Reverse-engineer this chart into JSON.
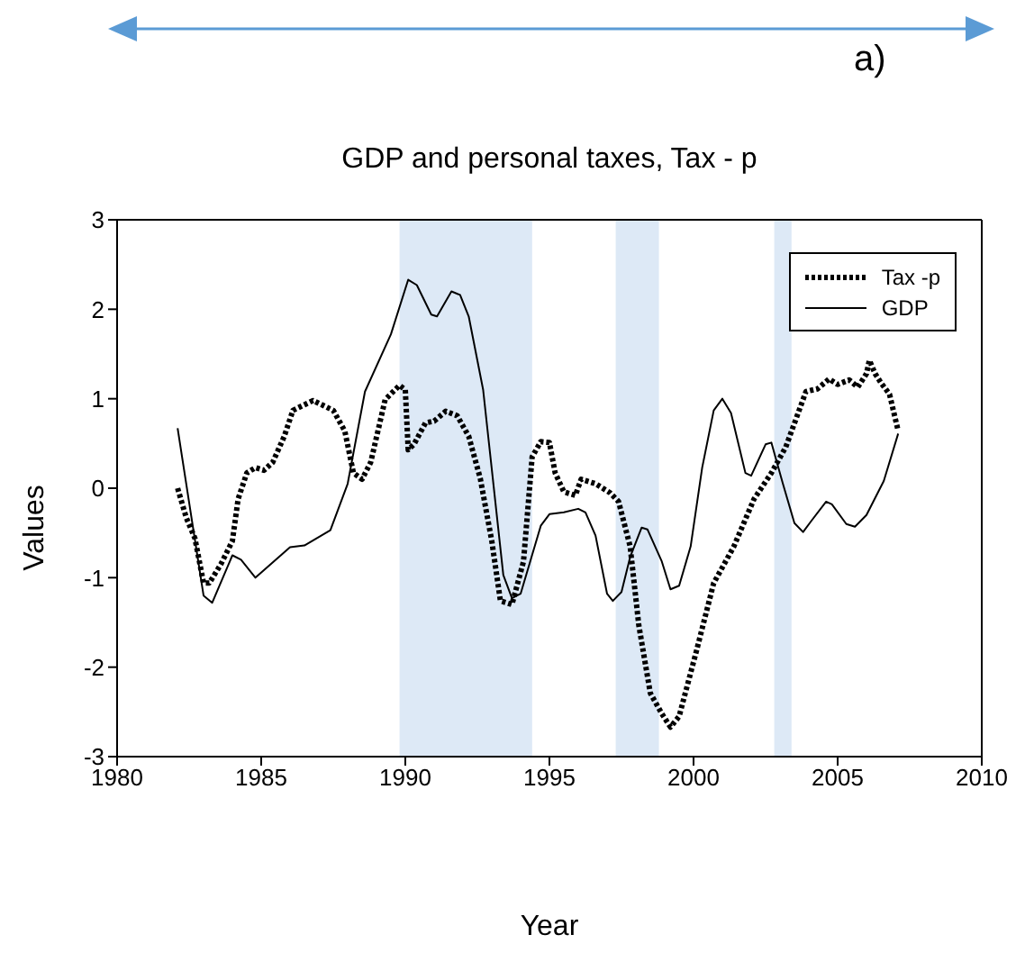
{
  "chart_data": {
    "type": "line",
    "title": "GDP and personal taxes, Tax - p",
    "xlabel": "Year",
    "ylabel": "Values",
    "annotations": [
      "a)"
    ],
    "xlim": [
      1980,
      2010
    ],
    "xticks": [
      1980,
      1985,
      1990,
      1995,
      2000,
      2005,
      2010
    ],
    "ylim": [
      -3,
      3
    ],
    "yticks": [
      -3,
      -2,
      -1,
      0,
      1,
      2,
      3
    ],
    "grid": false,
    "legend": "top right",
    "marker": "none",
    "bands": [
      {
        "axis": "x",
        "from": 1989.8,
        "to": 1994.4,
        "color": "#dde9f6"
      },
      {
        "axis": "x",
        "from": 1997.3,
        "to": 1998.8,
        "color": "#dde9f6"
      },
      {
        "axis": "x",
        "from": 2002.8,
        "to": 2003.4,
        "color": "#dde9f6"
      }
    ],
    "series": [
      {
        "name": "Tax -p",
        "color": "#000000",
        "line_style": "dotted",
        "x": [
          1982.1,
          1982.4,
          1982.7,
          1983.0,
          1983.2,
          1983.6,
          1984.0,
          1984.2,
          1984.5,
          1984.8,
          1985.1,
          1985.4,
          1985.8,
          1986.1,
          1986.8,
          1987.5,
          1987.9,
          1988.2,
          1988.5,
          1988.8,
          1989.3,
          1989.8,
          1990.0,
          1990.1,
          1990.3,
          1990.7,
          1991.0,
          1991.4,
          1991.8,
          1992.2,
          1992.6,
          1993.0,
          1993.3,
          1993.7,
          1994.1,
          1994.4,
          1994.7,
          1995.0,
          1995.2,
          1995.5,
          1995.9,
          1996.1,
          1996.6,
          1997.1,
          1997.4,
          1997.8,
          1998.1,
          1998.5,
          1998.9,
          1999.2,
          1999.5,
          2000.1,
          2000.7,
          2001.4,
          2002.1,
          2002.7,
          2003.2,
          2003.9,
          2004.3,
          2004.7,
          2005.0,
          2005.4,
          2005.7,
          2006.0,
          2006.1,
          2006.3,
          2006.5,
          2006.8,
          2007.1
        ],
        "values": [
          0.0,
          -0.33,
          -0.56,
          -1.06,
          -1.06,
          -0.85,
          -0.59,
          -0.12,
          0.17,
          0.23,
          0.2,
          0.29,
          0.58,
          0.87,
          0.98,
          0.87,
          0.64,
          0.17,
          0.1,
          0.29,
          0.99,
          1.15,
          1.1,
          0.43,
          0.49,
          0.73,
          0.75,
          0.86,
          0.81,
          0.58,
          0.11,
          -0.59,
          -1.26,
          -1.3,
          -0.82,
          0.35,
          0.52,
          0.51,
          0.17,
          -0.04,
          -0.08,
          0.1,
          0.05,
          -0.05,
          -0.15,
          -0.65,
          -1.53,
          -2.29,
          -2.52,
          -2.67,
          -2.55,
          -1.82,
          -1.06,
          -0.65,
          -0.12,
          0.17,
          0.46,
          1.08,
          1.11,
          1.22,
          1.16,
          1.21,
          1.13,
          1.28,
          1.43,
          1.28,
          1.18,
          1.05,
          0.64
        ]
      },
      {
        "name": "GDP",
        "color": "#000000",
        "line_style": "solid",
        "x": [
          1982.1,
          1983.0,
          1983.3,
          1984.0,
          1984.3,
          1984.8,
          1986.0,
          1986.5,
          1987.4,
          1988.0,
          1988.6,
          1989.5,
          1990.1,
          1990.4,
          1990.9,
          1991.1,
          1991.6,
          1991.9,
          1992.2,
          1992.7,
          1993.4,
          1993.7,
          1994.0,
          1994.7,
          1995.0,
          1995.5,
          1996.0,
          1996.25,
          1996.6,
          1997.0,
          1997.2,
          1997.5,
          1997.8,
          1998.2,
          1998.4,
          1998.9,
          1999.2,
          1999.5,
          1999.9,
          2000.3,
          2000.7,
          2001.0,
          2001.3,
          2001.8,
          2002.0,
          2002.5,
          2002.7,
          2003.1,
          2003.5,
          2003.8,
          2004.1,
          2004.6,
          2004.8,
          2005.3,
          2005.6,
          2006.0,
          2006.6,
          2007.1
        ],
        "values": [
          0.67,
          -1.2,
          -1.28,
          -0.75,
          -0.8,
          -1.0,
          -0.66,
          -0.64,
          -0.47,
          0.05,
          1.08,
          1.72,
          2.33,
          2.27,
          1.94,
          1.92,
          2.2,
          2.16,
          1.92,
          1.1,
          -0.97,
          -1.23,
          -1.18,
          -0.42,
          -0.29,
          -0.27,
          -0.23,
          -0.27,
          -0.53,
          -1.18,
          -1.26,
          -1.16,
          -0.77,
          -0.44,
          -0.46,
          -0.82,
          -1.13,
          -1.09,
          -0.65,
          0.23,
          0.87,
          1.0,
          0.84,
          0.17,
          0.14,
          0.49,
          0.51,
          0.05,
          -0.39,
          -0.49,
          -0.36,
          -0.15,
          -0.18,
          -0.4,
          -0.43,
          -0.3,
          0.08,
          0.61
        ]
      }
    ]
  }
}
